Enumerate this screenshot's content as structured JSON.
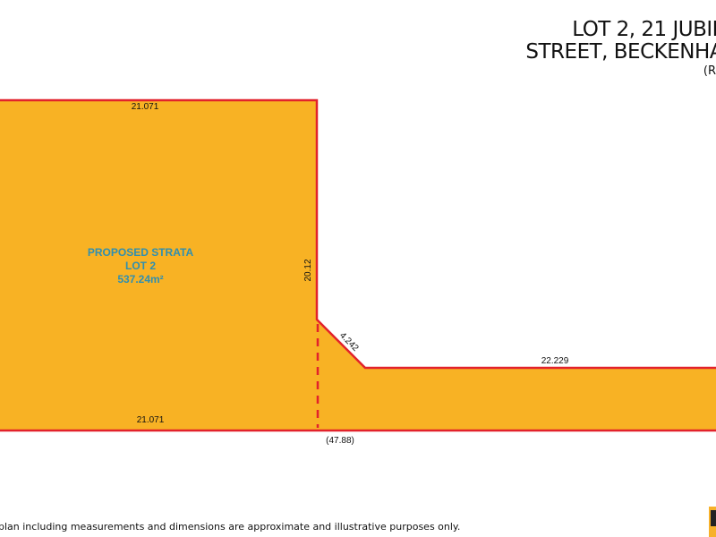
{
  "header": {
    "title_line1": "LOT 2, 21 JUBIL",
    "title_line2": "STREET, BECKENHA",
    "subtitle": "(R"
  },
  "lot": {
    "name_line1": "PROPOSED STRATA",
    "name_line2": "LOT 2",
    "area": "537.24m²"
  },
  "dimensions": {
    "top": "21.071",
    "bottom": "21.071",
    "right_vertical": "20.12",
    "diagonal": "4.242",
    "access_leg": "22.229",
    "total": "(47.88)"
  },
  "footer": {
    "disclaimer": "plan including measurements and dimensions are approximate and illustrative purposes only."
  },
  "colors": {
    "lot_fill": "#F8B224",
    "boundary": "#E2222B",
    "label": "#2F8FB0"
  }
}
